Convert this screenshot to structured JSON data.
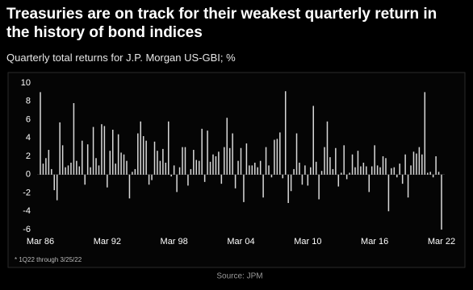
{
  "chart_data": {
    "type": "bar",
    "title": "Treasuries are on track for their weakest quarterly return in the history of bond indices",
    "subtitle": "Quarterly total returns for J.P. Morgan US-GBI; %",
    "footnote": "* 1Q22 through 3/25/22",
    "source": "Source: JPM",
    "color": "#d9d9d9",
    "ylim": [
      -6,
      10
    ],
    "yticks": [
      -6,
      -4,
      -2,
      0,
      2,
      4,
      6,
      8,
      10
    ],
    "grid": false,
    "categories": [
      "Mar 86",
      null,
      null,
      null,
      null,
      null,
      null,
      null,
      null,
      null,
      null,
      null,
      null,
      null,
      null,
      null,
      null,
      null,
      null,
      null,
      null,
      null,
      null,
      null,
      "Mar 92",
      null,
      null,
      null,
      null,
      null,
      null,
      null,
      null,
      null,
      null,
      null,
      null,
      null,
      null,
      null,
      null,
      null,
      null,
      null,
      null,
      null,
      null,
      null,
      "Mar 98",
      null,
      null,
      null,
      null,
      null,
      null,
      null,
      null,
      null,
      null,
      null,
      null,
      null,
      null,
      null,
      null,
      null,
      null,
      null,
      null,
      null,
      null,
      null,
      "Mar 04",
      null,
      null,
      null,
      null,
      null,
      null,
      null,
      null,
      null,
      null,
      null,
      null,
      null,
      null,
      null,
      null,
      null,
      null,
      null,
      null,
      null,
      null,
      null,
      "Mar 10",
      null,
      null,
      null,
      null,
      null,
      null,
      null,
      null,
      null,
      null,
      null,
      null,
      null,
      null,
      null,
      null,
      null,
      null,
      null,
      null,
      null,
      null,
      null,
      "Mar 16",
      null,
      null,
      null,
      null,
      null,
      null,
      null,
      null,
      null,
      null,
      null,
      null,
      null,
      null,
      null,
      null,
      null,
      null,
      null,
      null,
      null,
      null,
      null,
      "Mar 22"
    ],
    "values": [
      9.0,
      1.2,
      1.8,
      2.7,
      0.6,
      -1.7,
      -2.8,
      5.7,
      3.2,
      0.8,
      1.0,
      1.3,
      7.8,
      1.5,
      0.9,
      3.7,
      -1.1,
      3.3,
      0.8,
      5.2,
      1.8,
      1.0,
      5.5,
      5.3,
      -1.4,
      2.6,
      4.9,
      1.2,
      4.4,
      2.4,
      2.2,
      1.5,
      -2.6,
      0.3,
      0.6,
      4.5,
      5.8,
      4.2,
      3.7,
      -1.1,
      -0.6,
      3.6,
      2.6,
      1.5,
      2.8,
      1.3,
      5.8,
      -0.2,
      1.0,
      -1.9,
      0.8,
      3.0,
      3.0,
      -1.2,
      0.6,
      2.7,
      1.6,
      1.5,
      5.0,
      -0.8,
      4.8,
      1.4,
      2.2,
      2.0,
      2.5,
      -1.0,
      3.0,
      6.2,
      2.9,
      4.5,
      -1.5,
      1.5,
      2.9,
      -3.0,
      3.4,
      1.0,
      1.0,
      1.3,
      0.8,
      1.5,
      -2.5,
      3.0,
      1.0,
      -0.3,
      3.8,
      3.9,
      4.6,
      -0.4,
      9.1,
      -3.1,
      -1.8,
      0.6,
      4.5,
      1.3,
      -1.1,
      1.0,
      -1.2,
      0.8,
      7.5,
      1.4,
      -2.7,
      0.4,
      3.0,
      5.8,
      1.9,
      0.6,
      2.9,
      -1.3,
      0.2,
      3.2,
      -0.5,
      0.2,
      2.2,
      0.8,
      2.6,
      0.9,
      1.3,
      0.9,
      -1.9,
      0.9,
      3.2,
      1.0,
      0.8,
      2.0,
      1.8,
      -4.0,
      0.7,
      0.8,
      -0.3,
      1.2,
      -1.0,
      2.2,
      -2.5,
      1.0,
      2.5,
      2.3,
      3.0,
      2.2,
      9.0,
      0.2,
      0.3,
      -0.3,
      2.0,
      0.3,
      -6.0
    ]
  }
}
